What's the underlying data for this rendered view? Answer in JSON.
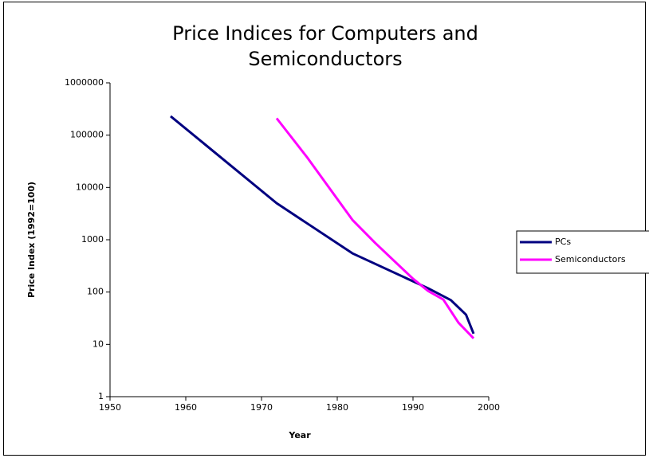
{
  "chart_data": {
    "type": "line",
    "title": "Price Indices for Computers and Semiconductors",
    "x_label": "Year",
    "y_label": "Price Index (1992=100)",
    "xlim": [
      1950,
      2000
    ],
    "xticks": [
      1950,
      1960,
      1970,
      1980,
      1990,
      2000
    ],
    "ylim": [
      1,
      1000000
    ],
    "yticks": [
      1,
      10,
      100,
      1000,
      10000,
      100000,
      1000000
    ],
    "ylog": true,
    "grid": false,
    "legend": "right",
    "series": [
      {
        "name": "PCs",
        "color": "#000080",
        "x": [
          1958,
          1972,
          1982,
          1992,
          1995,
          1997,
          1998
        ],
        "values": [
          230000,
          5000,
          550,
          118,
          70,
          37,
          16
        ]
      },
      {
        "name": "Semiconductors",
        "color": "#ff00ff",
        "x": [
          1972,
          1976,
          1982,
          1985,
          1990,
          1992,
          1994,
          1996,
          1998
        ],
        "values": [
          210000,
          38000,
          2400,
          870,
          180,
          105,
          72,
          26,
          13
        ]
      }
    ]
  }
}
